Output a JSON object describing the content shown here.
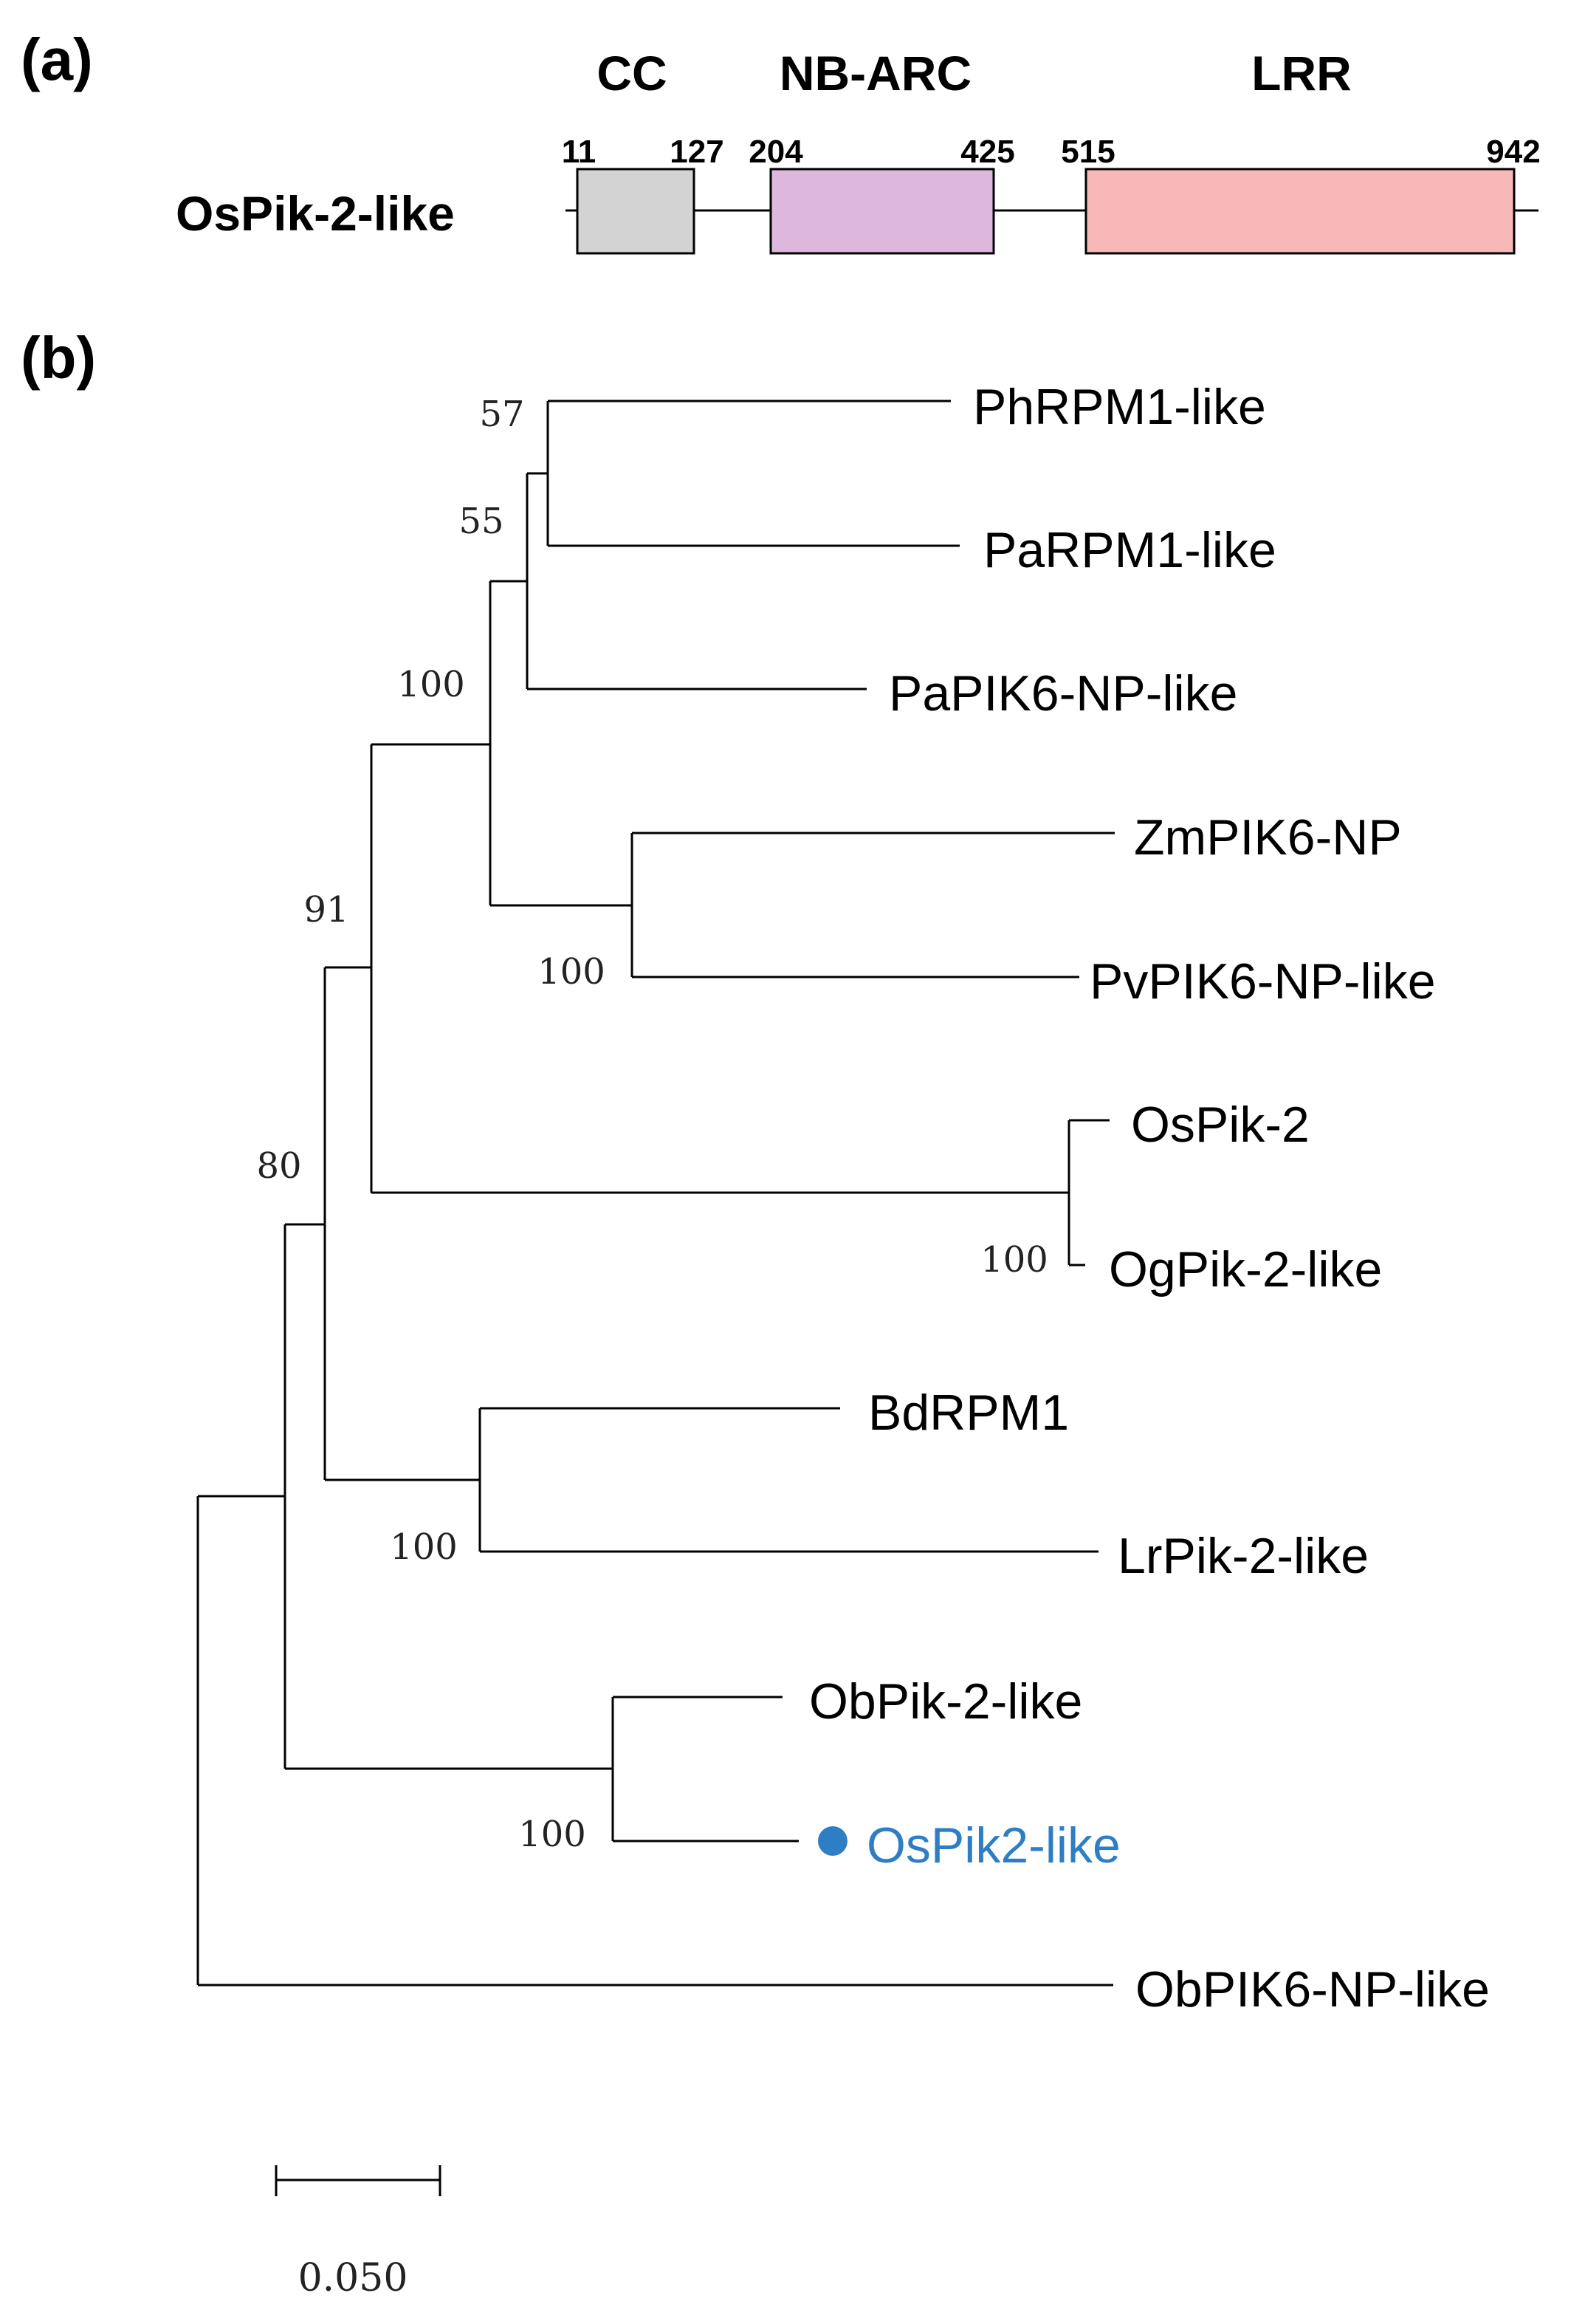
{
  "panel_a": {
    "letter": "(a)",
    "protein": "OsPik-2-like",
    "domains": [
      {
        "name": "CC",
        "start": "11",
        "end": "127",
        "color": "#d3d3d3"
      },
      {
        "name": "NB-ARC",
        "start": "204",
        "end": "425",
        "color": "#ddb8dc"
      },
      {
        "name": "LRR",
        "start": "515",
        "end": "942",
        "color": "#f7b8b7"
      }
    ]
  },
  "panel_b": {
    "letter": "(b)",
    "highlight_color": "#2e7ec6",
    "leaves": [
      "PhRPM1-like",
      "PaRPM1-like",
      "PaPIK6-NP-like",
      "ZmPIK6-NP",
      "PvPIK6-NP-like",
      "OsPik-2",
      "OgPik-2-like",
      "BdRPM1",
      "LrPik-2-like",
      "ObPik-2-like",
      "OsPik2-like",
      "ObPIK6-NP-like"
    ],
    "bootstrap": [
      "57",
      "55",
      "100",
      "91",
      "100",
      "80",
      "100",
      "100",
      "100"
    ],
    "scale_bar": "0.050"
  }
}
